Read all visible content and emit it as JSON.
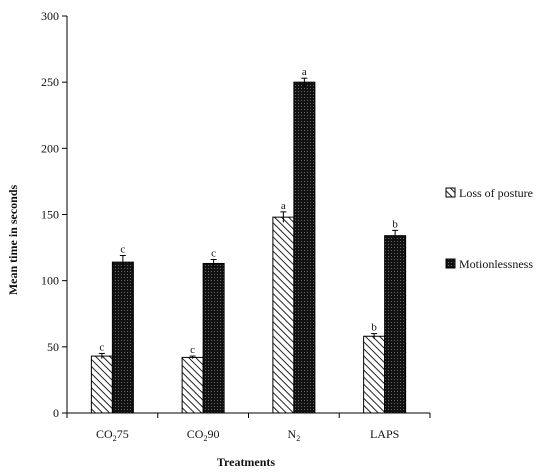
{
  "chart_data": {
    "type": "bar",
    "categories": [
      "CO₂75",
      "CO₂90",
      "N₂",
      "LAPS"
    ],
    "category_parts": [
      {
        "base": "CO",
        "sub": "2",
        "rest": "75"
      },
      {
        "base": "CO",
        "sub": "2",
        "rest": "90"
      },
      {
        "base": "N",
        "sub": "2",
        "rest": ""
      },
      {
        "base": "LAPS",
        "sub": "",
        "rest": ""
      }
    ],
    "series": [
      {
        "name": "Loss of posture",
        "values": [
          43,
          42,
          148,
          58
        ],
        "errors": [
          2,
          1,
          4,
          2
        ],
        "letters": [
          "c",
          "c",
          "a",
          "b"
        ],
        "fill": "hatch"
      },
      {
        "name": "Motionlessness",
        "values": [
          114,
          113,
          250,
          134
        ],
        "errors": [
          5,
          3,
          3,
          4
        ],
        "letters": [
          "c",
          "c",
          "a",
          "b"
        ],
        "fill": "dotted-black"
      }
    ],
    "xlabel": "Treatments",
    "ylabel": "Mean time in seconds",
    "ylim": [
      0,
      300
    ],
    "yticks": [
      0,
      50,
      100,
      150,
      200,
      250,
      300
    ],
    "grid": false,
    "legend": "right",
    "colors": {
      "hatch_line": "#222222",
      "dark_fill": "#111111",
      "background": "#ffffff"
    }
  }
}
